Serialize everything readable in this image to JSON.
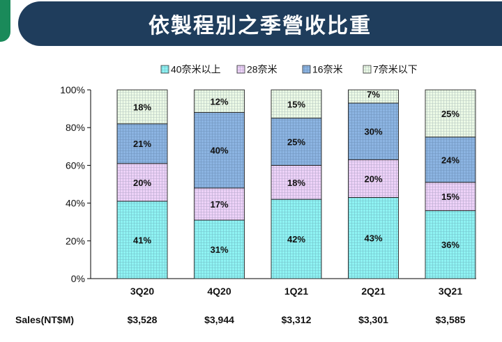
{
  "header": {
    "title": "依製程別之季營收比重"
  },
  "colors": {
    "header_bg": "#1f3d5c",
    "accent_green": "#1a8a5a"
  },
  "chart_data": {
    "type": "bar",
    "stacked": true,
    "categories": [
      "3Q20",
      "4Q20",
      "1Q21",
      "2Q21",
      "3Q21"
    ],
    "series": [
      {
        "name": "40奈米以上",
        "values": [
          41,
          31,
          42,
          43,
          36
        ],
        "color": "#8ff3f3",
        "pattern": "grid"
      },
      {
        "name": "28奈米",
        "values": [
          20,
          17,
          18,
          20,
          15
        ],
        "color": "#eed2f8",
        "pattern": "grid"
      },
      {
        "name": "16奈米",
        "values": [
          21,
          40,
          25,
          30,
          24
        ],
        "color": "#8cb4e2",
        "pattern": "grid"
      },
      {
        "name": "7奈米以下",
        "values": [
          18,
          12,
          15,
          7,
          25
        ],
        "color": "#ecfae6",
        "pattern": "grid"
      }
    ],
    "data_labels": [
      [
        "41%",
        "20%",
        "21%",
        "18%"
      ],
      [
        "31%",
        "17%",
        "40%",
        "12%"
      ],
      [
        "42%",
        "18%",
        "25%",
        "15%"
      ],
      [
        "43%",
        "20%",
        "30%",
        "7%"
      ],
      [
        "36%",
        "15%",
        "24%",
        "25%"
      ]
    ],
    "ylim": [
      0,
      100
    ],
    "yticks": [
      "0%",
      "20%",
      "40%",
      "60%",
      "80%",
      "100%"
    ],
    "legend_position": "top",
    "sales_label": "Sales(NT$M)",
    "sales": [
      "$3,528",
      "$3,944",
      "$3,312",
      "$3,301",
      "$3,585"
    ]
  }
}
